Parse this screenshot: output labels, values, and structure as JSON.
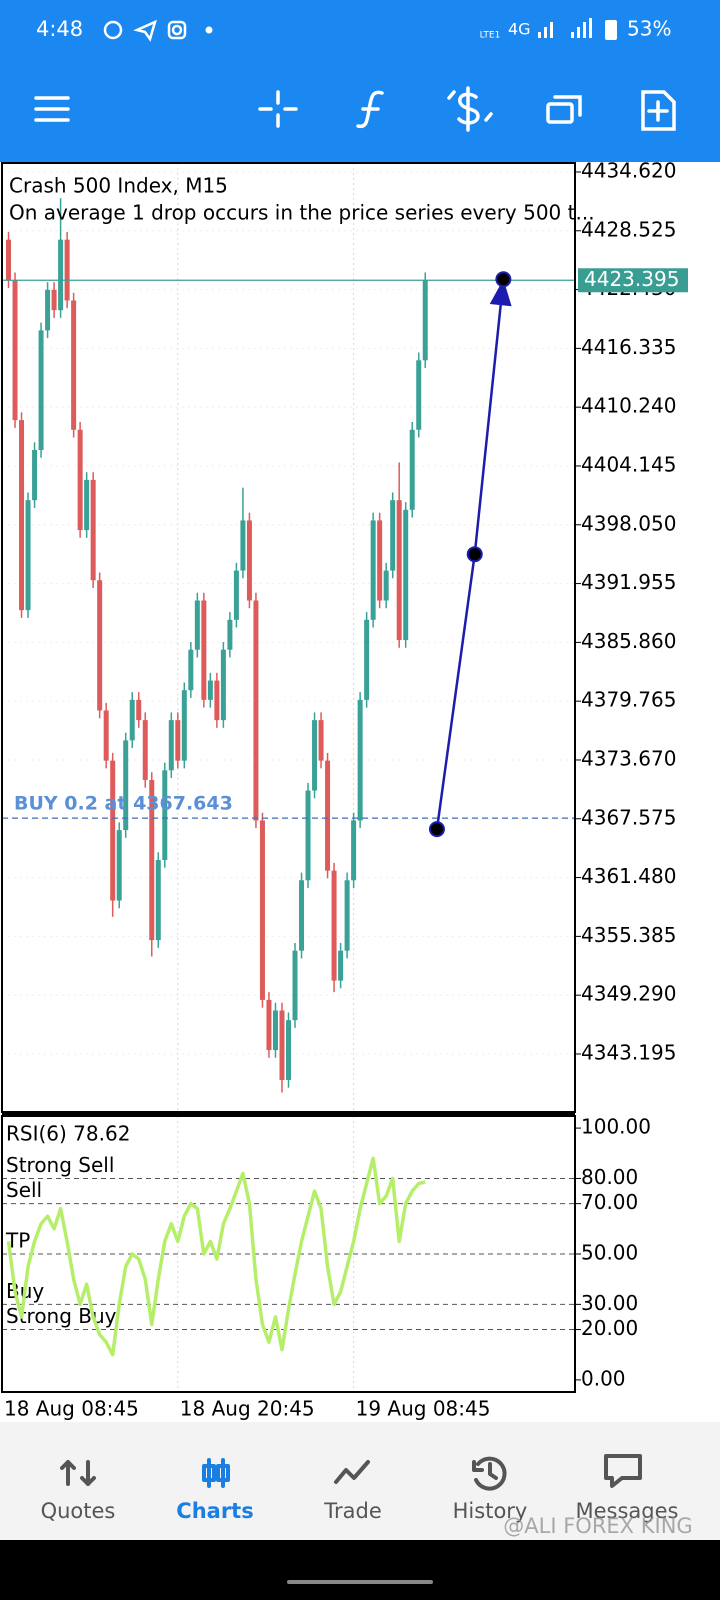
{
  "status_bar": {
    "time": "4:48",
    "volte": "LTE1",
    "network": "4G",
    "battery": "53%"
  },
  "chart_data": [
    {
      "type": "candlestick",
      "title": "Crash 500 Index, M15",
      "subtitle": "On average 1 drop occurs in the price series every 500 t...",
      "open": [
        4427.6,
        4423.4,
        4408.9,
        4389.2,
        4400.6,
        4405.8,
        4418.2,
        4422.4,
        4420.3,
        4427.6,
        4421.3,
        4407.9,
        4397.5,
        4402.7,
        4392.3,
        4378.8,
        4373.6,
        4359.1,
        4366.4,
        4375.7,
        4379.9,
        4377.8,
        4371.6,
        4355.0,
        4363.3,
        4372.6,
        4377.8,
        4373.6,
        4380.9,
        4385.1,
        4390.2,
        4379.9,
        4381.9,
        4377.8,
        4385.1,
        4388.2,
        4393.3,
        4398.5,
        4390.2,
        4367.4,
        4348.8,
        4343.6,
        4347.7,
        4340.5,
        4346.7,
        4353.9,
        4361.2,
        4370.5,
        4377.8,
        4373.6,
        4362.2,
        4350.8,
        4353.9,
        4361.2,
        4367.4,
        4379.9,
        4388.2,
        4398.5,
        4390.2,
        4393.3,
        4400.6,
        4386.1,
        4399.6,
        4407.9,
        4415.1
      ],
      "high": [
        4428.4,
        4424.2,
        4409.7,
        4401.4,
        4406.6,
        4419.0,
        4423.2,
        4423.2,
        4431.9,
        4428.4,
        4422.1,
        4408.7,
        4403.5,
        4403.5,
        4393.1,
        4379.6,
        4374.4,
        4367.2,
        4376.5,
        4380.7,
        4380.7,
        4378.6,
        4372.4,
        4364.1,
        4373.4,
        4378.6,
        4378.6,
        4381.7,
        4385.9,
        4391.0,
        4391.0,
        4382.7,
        4382.7,
        4385.9,
        4389.0,
        4394.1,
        4401.9,
        4399.3,
        4391.0,
        4368.2,
        4349.6,
        4348.5,
        4348.5,
        4347.5,
        4354.7,
        4362.0,
        4371.3,
        4378.6,
        4378.6,
        4374.4,
        4363.0,
        4354.7,
        4362.0,
        4368.2,
        4380.7,
        4389.0,
        4399.3,
        4399.3,
        4394.1,
        4401.4,
        4404.5,
        4400.4,
        4408.7,
        4415.9,
        4424.2
      ],
      "low": [
        4422.6,
        4408.1,
        4388.4,
        4388.4,
        4399.8,
        4405.0,
        4417.4,
        4419.5,
        4419.5,
        4420.5,
        4407.1,
        4396.7,
        4396.7,
        4391.5,
        4378.0,
        4372.8,
        4357.4,
        4358.3,
        4365.6,
        4374.9,
        4377.0,
        4370.8,
        4353.3,
        4354.2,
        4362.5,
        4371.8,
        4372.8,
        4372.8,
        4380.1,
        4384.3,
        4379.1,
        4379.1,
        4377.0,
        4377.0,
        4384.3,
        4387.4,
        4392.5,
        4389.4,
        4366.6,
        4348.0,
        4342.8,
        4342.8,
        4339.2,
        4339.7,
        4345.9,
        4353.1,
        4360.4,
        4369.7,
        4372.8,
        4361.4,
        4349.6,
        4350.0,
        4353.1,
        4360.4,
        4366.6,
        4379.1,
        4387.4,
        4389.4,
        4389.4,
        4392.5,
        4385.3,
        4385.3,
        4398.8,
        4407.1,
        4414.3
      ],
      "close": [
        4423.4,
        4408.9,
        4389.2,
        4400.6,
        4405.8,
        4418.2,
        4422.4,
        4420.3,
        4427.6,
        4421.3,
        4407.9,
        4397.5,
        4402.7,
        4392.3,
        4378.8,
        4373.6,
        4359.1,
        4366.4,
        4375.7,
        4379.9,
        4377.8,
        4371.6,
        4355.0,
        4363.3,
        4372.6,
        4377.8,
        4373.6,
        4380.9,
        4385.1,
        4390.2,
        4379.9,
        4381.9,
        4377.8,
        4385.1,
        4388.2,
        4393.3,
        4398.5,
        4390.2,
        4367.4,
        4348.8,
        4343.6,
        4347.7,
        4340.5,
        4346.7,
        4353.9,
        4361.2,
        4370.5,
        4377.8,
        4373.6,
        4362.2,
        4350.8,
        4353.9,
        4361.2,
        4367.4,
        4379.9,
        4388.2,
        4398.5,
        4390.2,
        4393.3,
        4400.6,
        4386.1,
        4399.6,
        4407.9,
        4415.1,
        4423.4
      ],
      "up_color": "#3aa197",
      "down_color": "#dd5b5b",
      "xlim": [
        -1,
        87
      ],
      "xticks": [
        {
          "value": -1,
          "label": "18 Aug 08:45"
        },
        {
          "value": 26,
          "label": "18 Aug 20:45"
        },
        {
          "value": 53,
          "label": "19 Aug 08:45"
        }
      ],
      "ylim": [
        4337.18,
        4435.55
      ],
      "yticks": [
        {
          "value": 4434.62,
          "label": "4434.620"
        },
        {
          "value": 4428.525,
          "label": "4428.525"
        },
        {
          "value": 4422.43,
          "label": "4422.430"
        },
        {
          "value": 4416.335,
          "label": "4416.335"
        },
        {
          "value": 4410.24,
          "label": "4410.240"
        },
        {
          "value": 4404.145,
          "label": "4404.145"
        },
        {
          "value": 4398.05,
          "label": "4398.050"
        },
        {
          "value": 4391.955,
          "label": "4391.955"
        },
        {
          "value": 4385.86,
          "label": "4385.860"
        },
        {
          "value": 4379.765,
          "label": "4379.765"
        },
        {
          "value": 4373.67,
          "label": "4373.670"
        },
        {
          "value": 4367.575,
          "label": "4367.575"
        },
        {
          "value": 4361.48,
          "label": "4361.480"
        },
        {
          "value": 4355.385,
          "label": "4355.385"
        },
        {
          "value": 4349.29,
          "label": "4349.290"
        },
        {
          "value": 4343.195,
          "label": "4343.195"
        }
      ],
      "grid": true,
      "current_price": 4423.395,
      "order": {
        "label": "BUY 0.2 at 4367.643",
        "price": 4367.643
      },
      "trend_arrow": {
        "x": [
          65.8,
          71.6,
          76.0
        ],
        "y": [
          4366.5,
          4395.0,
          4423.5
        ],
        "color": "#1c1cae"
      }
    },
    {
      "type": "line",
      "title": "RSI(6) 78.62",
      "values": [
        55,
        35,
        25,
        45,
        55,
        62,
        65,
        60,
        68,
        55,
        40,
        30,
        38,
        25,
        18,
        15,
        10,
        30,
        45,
        50,
        48,
        40,
        22,
        40,
        55,
        62,
        55,
        65,
        70,
        68,
        50,
        55,
        48,
        62,
        68,
        75,
        82,
        70,
        40,
        22,
        15,
        25,
        12,
        28,
        42,
        55,
        65,
        75,
        68,
        45,
        30,
        35,
        45,
        55,
        68,
        78,
        88,
        70,
        73,
        80,
        55,
        70,
        75,
        78,
        78.62
      ],
      "color": "#b5ef6a",
      "ylim": [
        -4.8,
        104.8
      ],
      "yticks": [
        {
          "value": 100,
          "label": "100.00"
        },
        {
          "value": 80,
          "label": "80.00"
        },
        {
          "value": 70,
          "label": "70.00"
        },
        {
          "value": 50,
          "label": "50.00"
        },
        {
          "value": 30,
          "label": "30.00"
        },
        {
          "value": 20,
          "label": "20.00"
        },
        {
          "value": 0,
          "label": "0.00"
        }
      ],
      "levels": [
        {
          "name": "Strong Sell",
          "value": 80
        },
        {
          "name": "Sell",
          "value": 70
        },
        {
          "name": "TP",
          "value": 50
        },
        {
          "name": "Buy",
          "value": 30
        },
        {
          "name": "Strong Buy",
          "value": 20
        }
      ]
    }
  ],
  "tabs": [
    "Quotes",
    "Charts",
    "Trade",
    "History",
    "Messages"
  ],
  "active_tab": 1,
  "watermark": "@ALI FOREX KING"
}
